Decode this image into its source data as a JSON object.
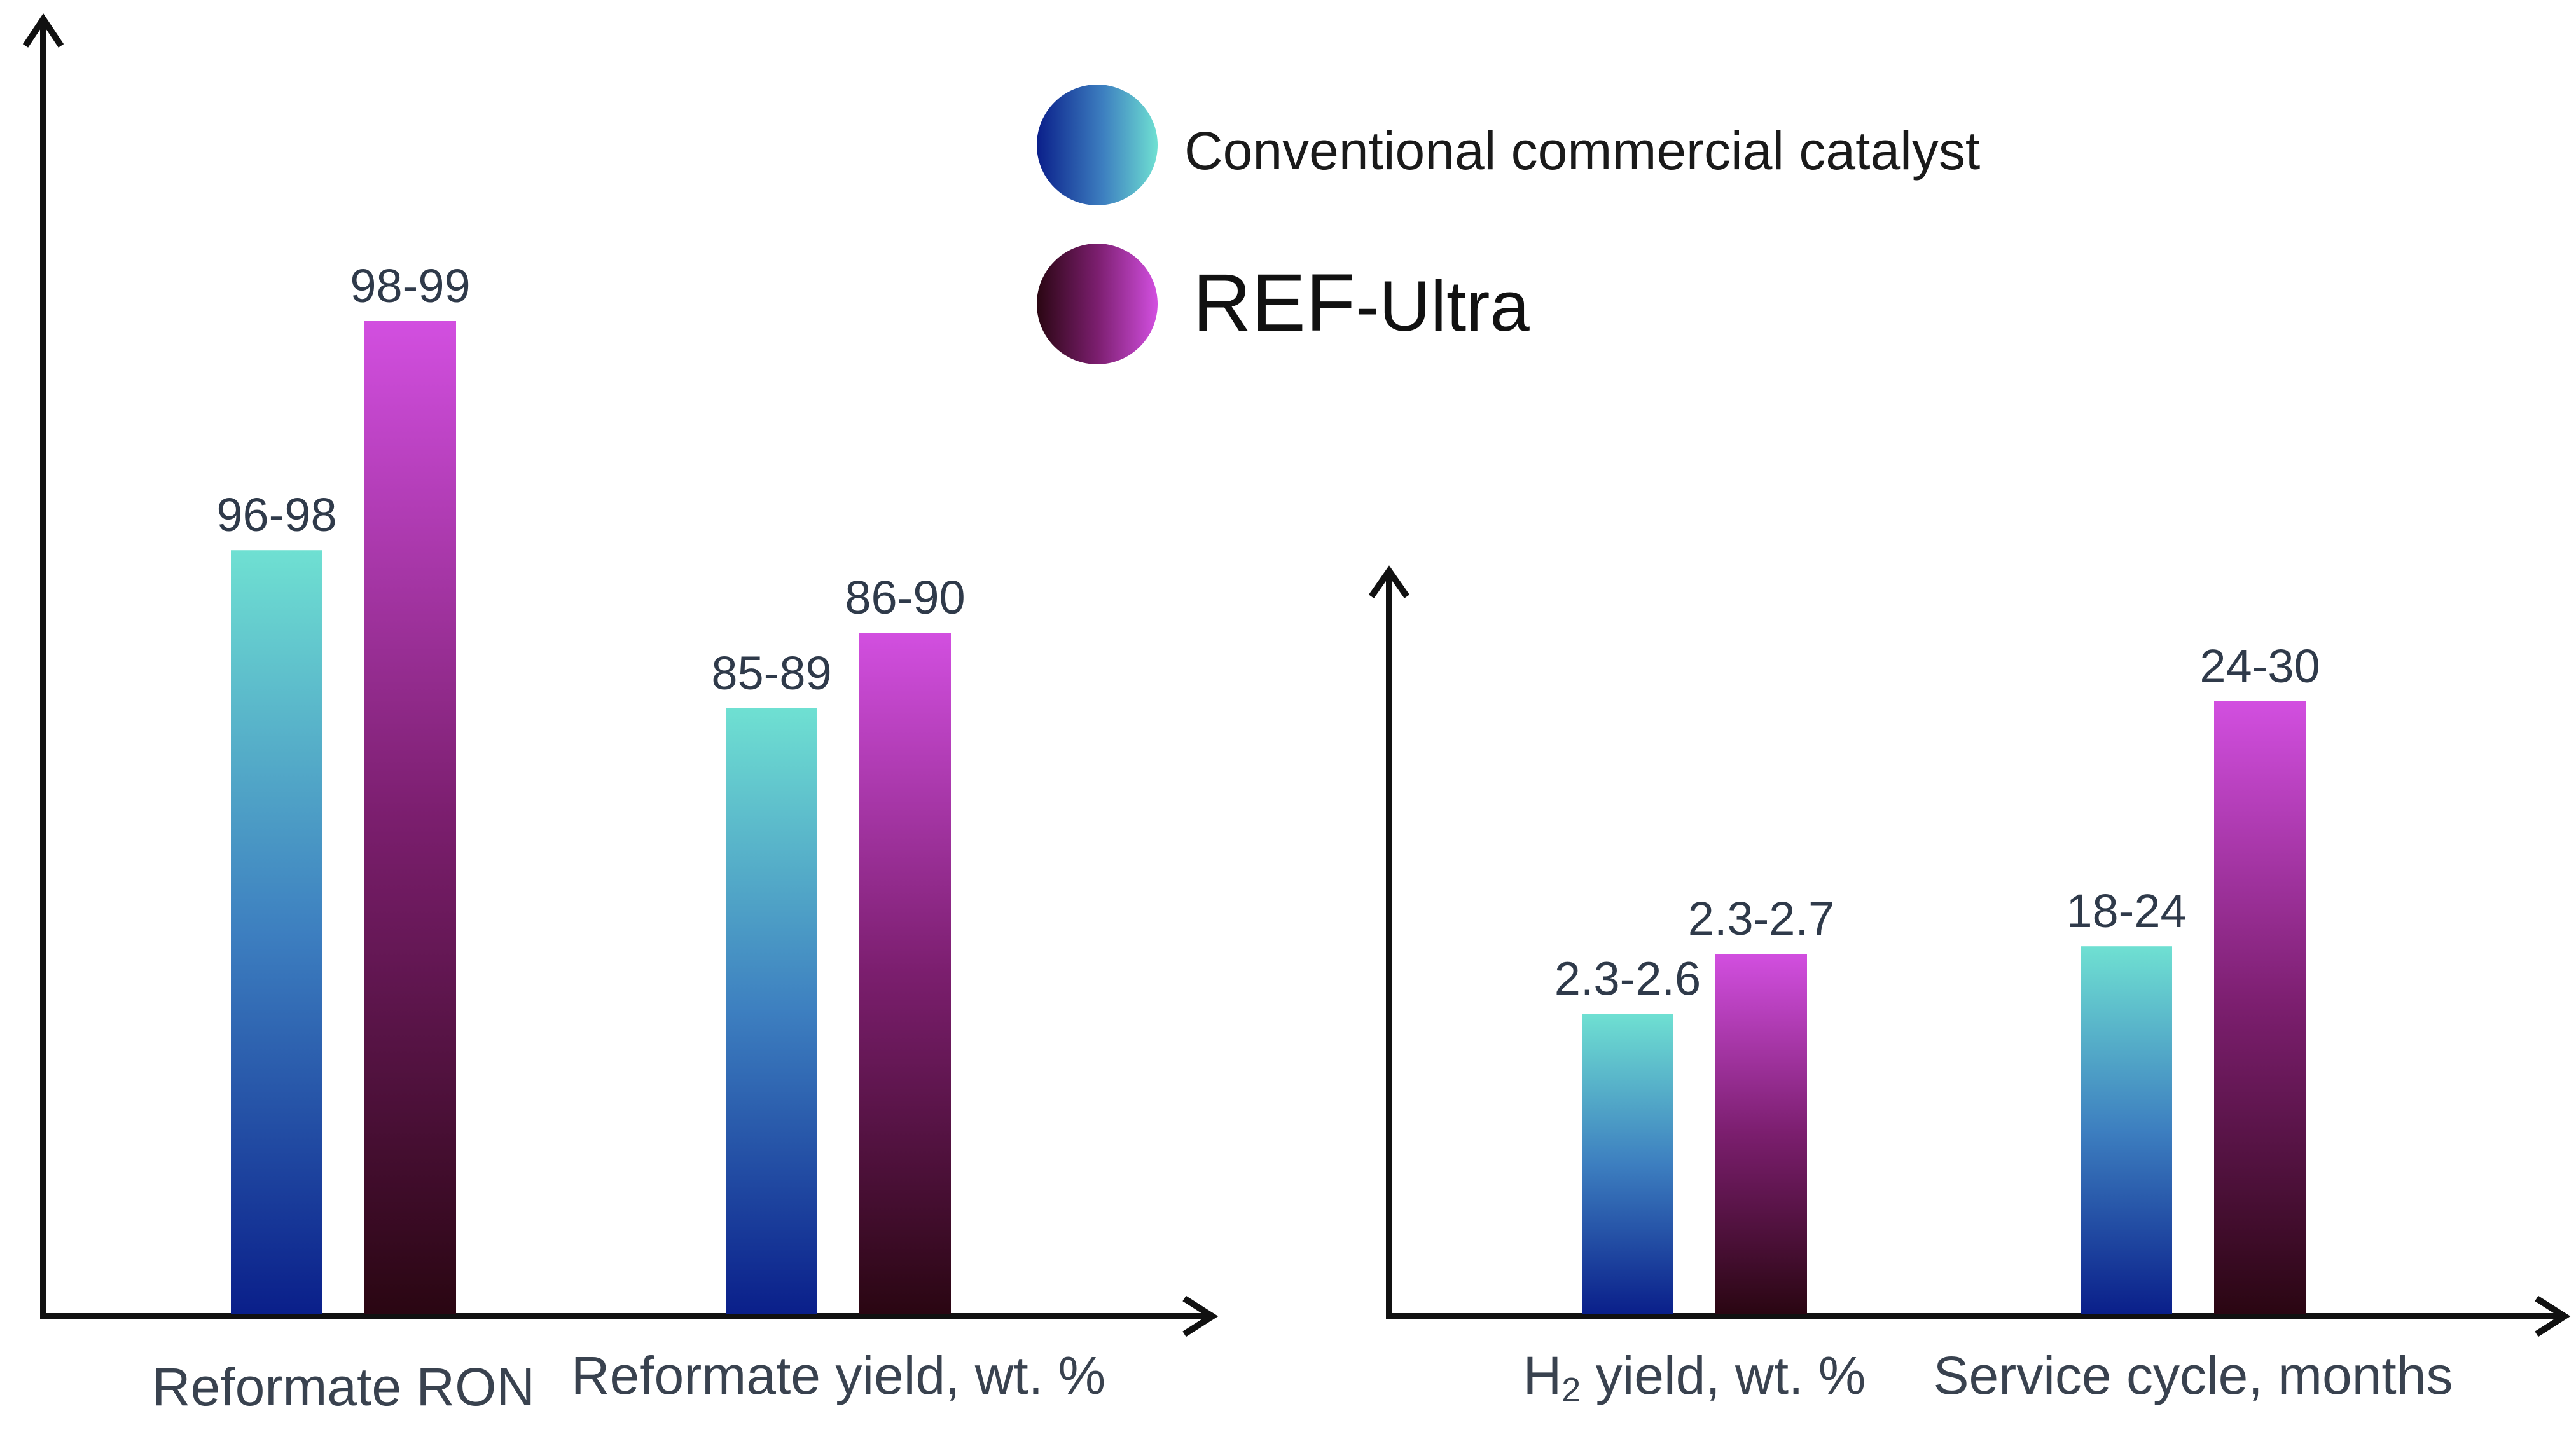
{
  "legend": {
    "series_a": "Conventional commercial catalyst",
    "series_b_prefix": "REF",
    "series_b_suffix": "-Ultra"
  },
  "colors": {
    "conventional_top": "#6fe0d2",
    "conventional_mid": "#3d7fc0",
    "conventional_bottom": "#0a1f8a",
    "ultra_top": "#d24fe0",
    "ultra_mid": "#7b1e6e",
    "ultra_bottom": "#2a0612",
    "axis": "#111111"
  },
  "chart_data": [
    {
      "type": "bar",
      "categories": [
        "Reformate RON",
        "Reformate yield, wt. %"
      ],
      "series": [
        {
          "name": "Conventional commercial catalyst",
          "values": [
            97,
            87
          ],
          "labels": [
            "96-98",
            "85-89"
          ]
        },
        {
          "name": "REF-Ultra",
          "values": [
            98.5,
            88
          ],
          "labels": [
            "98-99",
            "86-90"
          ]
        }
      ]
    },
    {
      "type": "bar",
      "categories": [
        "H2 yield, wt. %",
        "Service cycle, months"
      ],
      "series": [
        {
          "name": "Conventional commercial catalyst",
          "values": [
            2.45,
            21
          ],
          "labels": [
            "2.3-2.6",
            "18-24"
          ]
        },
        {
          "name": "REF-Ultra",
          "values": [
            2.5,
            27
          ],
          "labels": [
            "2.3-2.7",
            "24-30"
          ]
        }
      ]
    }
  ]
}
